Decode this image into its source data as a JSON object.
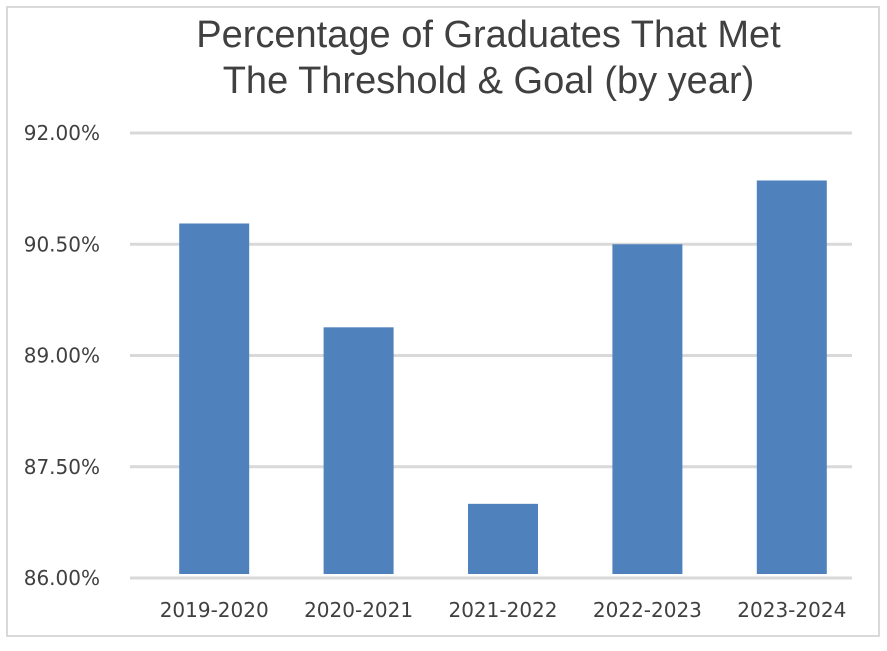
{
  "chart_data": {
    "type": "bar",
    "title_lines": [
      "Percentage of Graduates That Met",
      "The Threshold & Goal (by year)"
    ],
    "categories": [
      "2019-2020",
      "2020-2021",
      "2021-2022",
      "2022-2023",
      "2023-2024"
    ],
    "values": [
      90.78,
      89.38,
      87.0,
      90.5,
      91.36
    ],
    "unit": "%",
    "ylim": [
      86.0,
      92.0
    ],
    "yticks": [
      86.0,
      87.5,
      89.0,
      90.5,
      92.0
    ],
    "ytick_labels": [
      "86.00%",
      "87.50%",
      "89.00%",
      "90.50%",
      "92.00%"
    ],
    "grid": true,
    "bar_color": "#4f81bd",
    "grid_color": "#d9d9d9",
    "text_color": "#404040"
  }
}
